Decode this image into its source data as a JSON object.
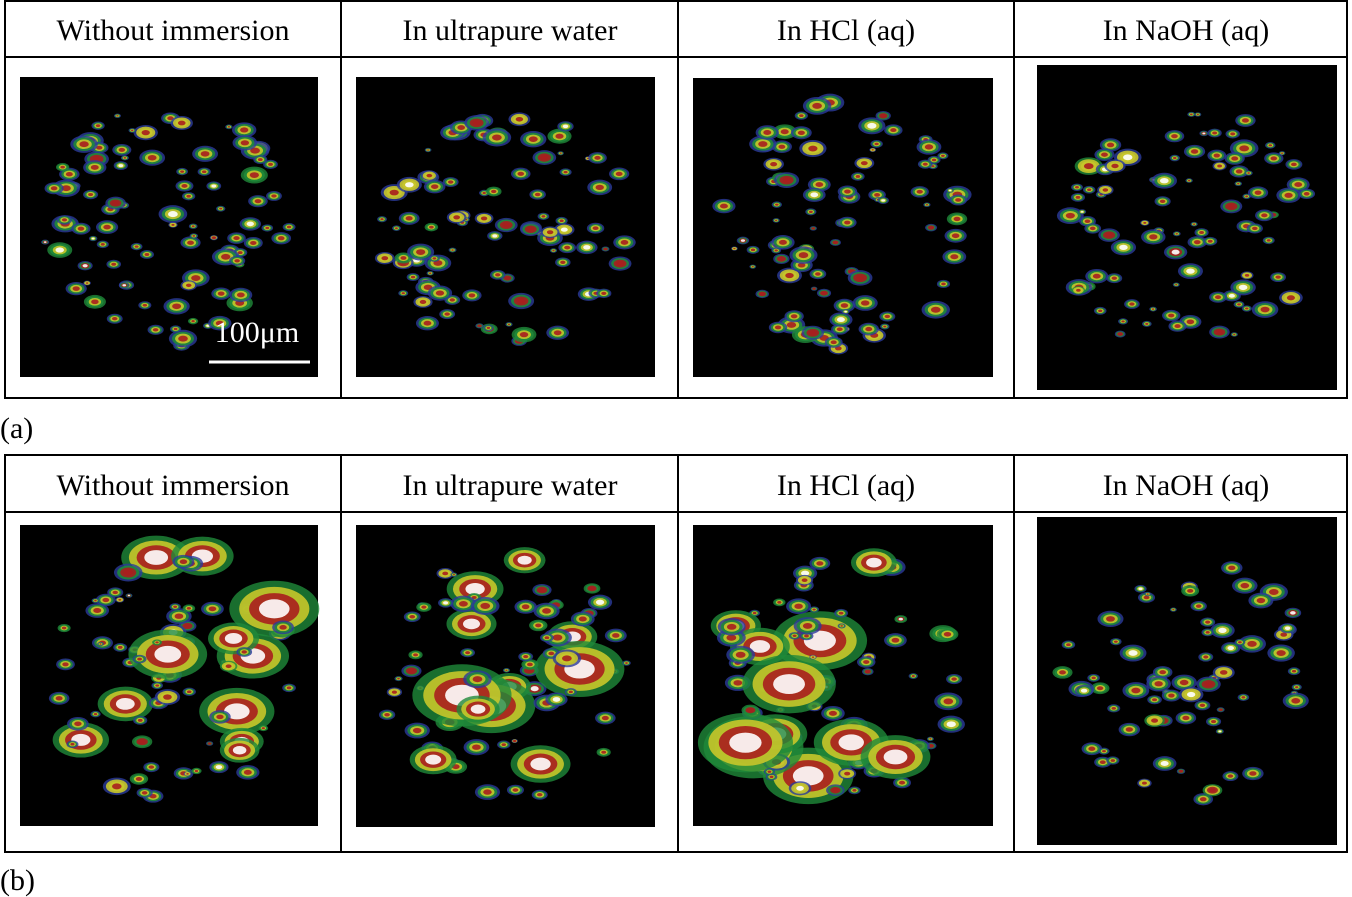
{
  "panels": [
    {
      "label": "(a)",
      "headers": [
        "Without immersion",
        "In ultrapure water",
        "In HCl (aq)",
        "In NaOH (aq)"
      ],
      "scale_bar": "100μm"
    },
    {
      "label": "(b)",
      "headers": [
        "Without immersion",
        "In ultrapure water",
        "In HCl (aq)",
        "In NaOH (aq)"
      ]
    }
  ]
}
